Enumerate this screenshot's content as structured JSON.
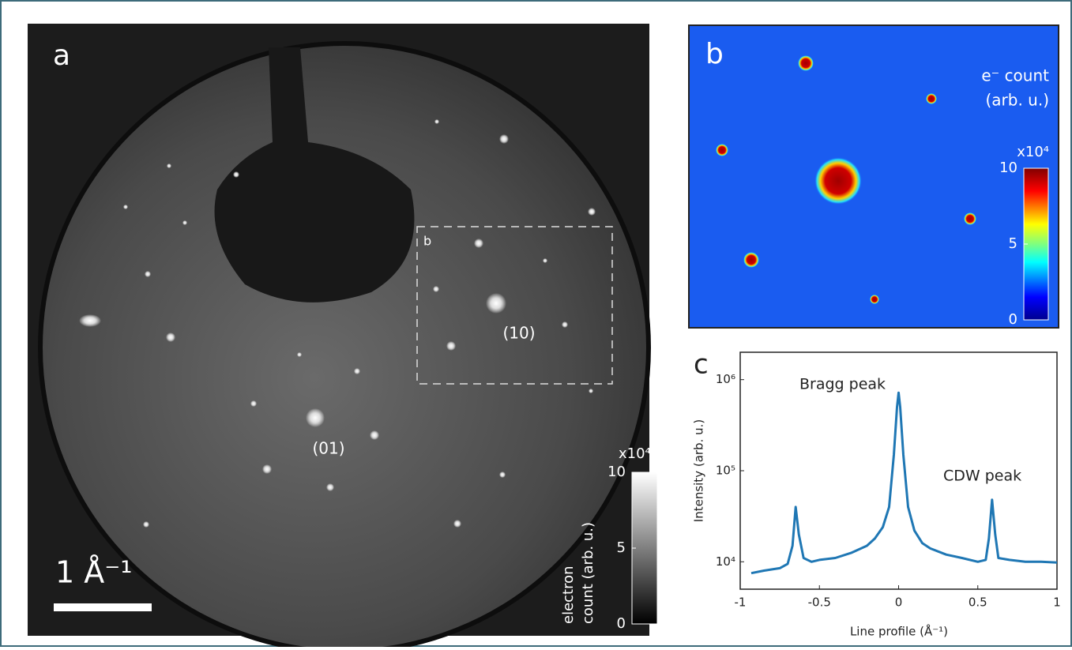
{
  "panel_a": {
    "label": "a",
    "box_label": "b",
    "spot_labels": [
      "(01)",
      "(10)"
    ],
    "scale_bar": "1 Å⁻¹",
    "colorbar": {
      "exponent": "x10⁴",
      "label_lines": [
        "electron",
        "count (arb. u.)"
      ],
      "lim": [
        0,
        10
      ],
      "ticks": [
        0,
        5,
        10
      ]
    }
  },
  "panel_b": {
    "label": "b",
    "legend_lines": [
      "e⁻ count",
      "(arb. u.)"
    ],
    "colorbar": {
      "exponent": "x10⁴",
      "lim": [
        0,
        10
      ],
      "ticks": [
        0,
        5,
        10
      ]
    }
  },
  "chart_data": {
    "type": "line",
    "panel_label": "c",
    "xlabel": "Line profile (Å⁻¹)",
    "ylabel": "Intensity (arb. u.)",
    "annotations": [
      "Bragg peak",
      "CDW peak"
    ],
    "log_y": true,
    "color": "#1f77b4",
    "xlim": [
      -1,
      1
    ],
    "xticks": [
      -1,
      -0.5,
      0,
      0.5,
      1
    ],
    "ylim": [
      5000,
      2000000
    ],
    "yticks": [
      {
        "value": 10000,
        "label": "10⁴"
      },
      {
        "value": 100000,
        "label": "10⁵"
      },
      {
        "value": 1000000,
        "label": "10⁶"
      }
    ],
    "x": [
      -0.93,
      -0.85,
      -0.75,
      -0.7,
      -0.67,
      -0.65,
      -0.63,
      -0.6,
      -0.55,
      -0.5,
      -0.4,
      -0.3,
      -0.2,
      -0.15,
      -0.1,
      -0.06,
      -0.03,
      -0.01,
      0,
      0.01,
      0.03,
      0.06,
      0.1,
      0.15,
      0.2,
      0.3,
      0.4,
      0.5,
      0.55,
      0.57,
      0.59,
      0.61,
      0.63,
      0.7,
      0.8,
      0.9,
      1.0
    ],
    "values": [
      7500,
      8000,
      8500,
      9500,
      15000,
      40000,
      20000,
      11000,
      10000,
      10500,
      11000,
      12500,
      15000,
      18000,
      24000,
      40000,
      150000,
      500000,
      720000,
      500000,
      150000,
      40000,
      22000,
      16000,
      14000,
      12000,
      11000,
      10000,
      10500,
      18000,
      48000,
      20000,
      11000,
      10500,
      10000,
      10000,
      9800
    ]
  }
}
